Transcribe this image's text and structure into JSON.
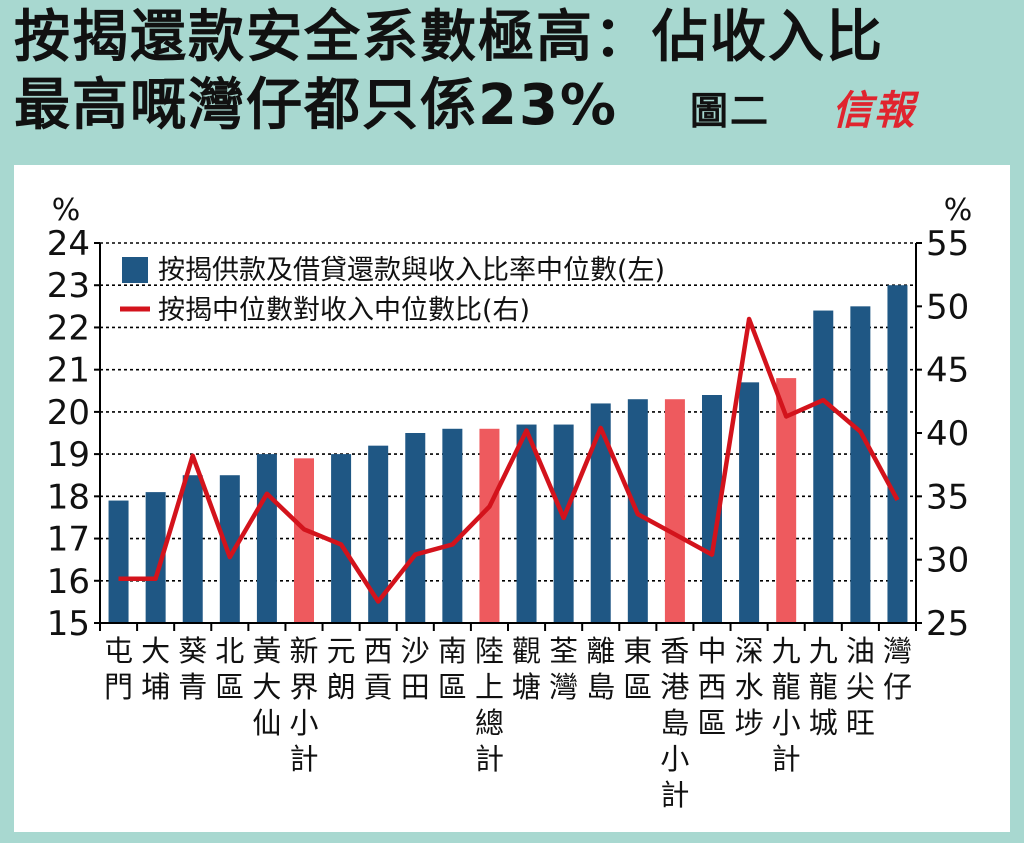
{
  "headline": {
    "line1": "按揭還款安全系數極高：佔收入比",
    "line2": "最高嘅灣仔都只係23%",
    "figure_label": "圖二",
    "logo_text": "信報"
  },
  "colors": {
    "background": "#a8d8d0",
    "bar_district": "#1f5784",
    "bar_subtotal": "#ee5a5e",
    "line": "#d3131c"
  },
  "chart_data": {
    "type": "bar+line",
    "left_axis": {
      "unit": "%",
      "ylim": [
        15,
        24
      ],
      "ticks": [
        15,
        16,
        17,
        18,
        19,
        20,
        21,
        22,
        23,
        24
      ]
    },
    "right_axis": {
      "unit": "%",
      "ylim": [
        25,
        55
      ],
      "ticks": [
        25,
        30,
        35,
        40,
        45,
        50,
        55
      ]
    },
    "legend": {
      "position": "top-left",
      "bar_label": "按揭供款及借貸還款與收入比率中位數(左)",
      "line_label": "按揭中位數對收入中位數比(右)"
    },
    "categories": [
      "屯門",
      "大埔",
      "葵青",
      "北區",
      "黃大仙",
      "新界小計",
      "元朗",
      "西貢",
      "沙田",
      "南區",
      "陸上總計",
      "觀塘",
      "荃灣",
      "離島",
      "東區",
      "香港島小計",
      "中西區",
      "深水埗",
      "九龍小計",
      "九龍城",
      "油尖旺",
      "灣仔"
    ],
    "subtotal_flags": [
      false,
      false,
      false,
      false,
      false,
      true,
      false,
      false,
      false,
      false,
      true,
      false,
      false,
      false,
      false,
      true,
      false,
      false,
      true,
      false,
      false,
      false
    ],
    "bar_values": [
      17.9,
      18.1,
      18.5,
      18.5,
      19.0,
      18.9,
      19.0,
      19.2,
      19.5,
      19.6,
      19.6,
      19.7,
      19.7,
      20.2,
      20.3,
      20.3,
      20.4,
      20.7,
      20.8,
      22.4,
      22.5,
      23.0
    ],
    "line_values": [
      28.5,
      28.5,
      38.2,
      30.2,
      35.2,
      32.4,
      31.2,
      26.7,
      30.4,
      31.2,
      34.2,
      40.2,
      33.3,
      40.4,
      33.6,
      32.0,
      30.4,
      49.0,
      41.3,
      42.6,
      40.1,
      34.7
    ]
  }
}
